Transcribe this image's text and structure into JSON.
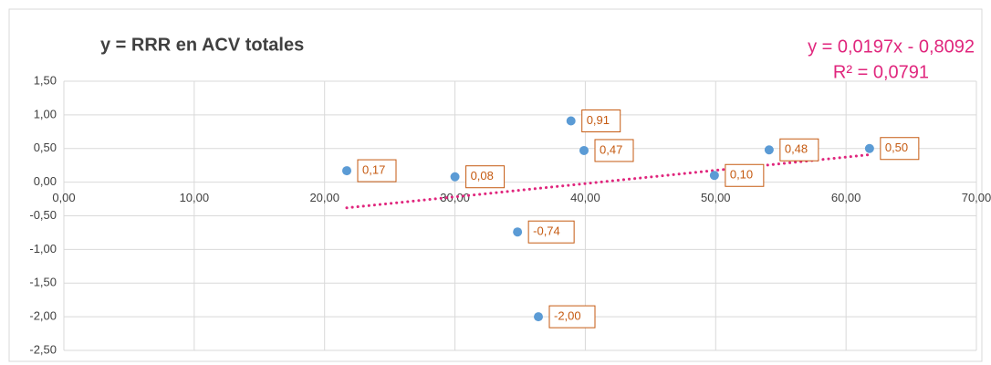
{
  "chart_data": {
    "type": "scatter",
    "title": "y = RRR en ACV totales",
    "x": [
      21.7,
      30.0,
      38.9,
      39.9,
      34.8,
      36.4,
      49.9,
      54.1,
      61.8
    ],
    "values": [
      0.17,
      0.08,
      0.91,
      0.47,
      -0.74,
      -2.0,
      0.1,
      0.48,
      0.5
    ],
    "value_labels": [
      "0,17",
      "0,08",
      "0,91",
      "0,47",
      "-0,74",
      "-2,00",
      "0,10",
      "0,48",
      "0,50"
    ],
    "color": "#5b9bd5",
    "label_color": "#c55a11",
    "xlim": [
      0,
      70
    ],
    "xticks": [
      {
        "value": 0,
        "label": "0,00"
      },
      {
        "value": 10,
        "label": "10,00"
      },
      {
        "value": 20,
        "label": "20,00"
      },
      {
        "value": 30,
        "label": "30,00"
      },
      {
        "value": 40,
        "label": "40,00"
      },
      {
        "value": 50,
        "label": "50,00"
      },
      {
        "value": 60,
        "label": "60,00"
      },
      {
        "value": 70,
        "label": "70,00"
      }
    ],
    "ylim": [
      -2.5,
      1.5
    ],
    "yticks": [
      {
        "value": 1.5,
        "label": "1,50"
      },
      {
        "value": 1.0,
        "label": "1,00"
      },
      {
        "value": 0.5,
        "label": "0,50"
      },
      {
        "value": 0,
        "label": "0,00"
      },
      {
        "value": -0.5,
        "label": "-0,50"
      },
      {
        "value": -1.0,
        "label": "-1,00"
      },
      {
        "value": -1.5,
        "label": "-1,50"
      },
      {
        "value": -2.0,
        "label": "-2,00"
      },
      {
        "value": -2.5,
        "label": "-2,50"
      }
    ],
    "grid": true,
    "trendline": {
      "slope": 0.0197,
      "intercept": -0.8092,
      "r2": 0.0791,
      "color": "#e0267d",
      "equation_label": "y = 0,0197x - 0,8092",
      "r2_label": "R² = 0,0791"
    }
  }
}
